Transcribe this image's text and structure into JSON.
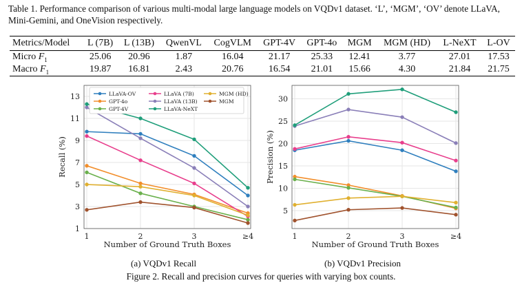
{
  "table_caption": "Table 1. Performance comparison of various multi-modal large language models on VQDv1 dataset. ‘L’, ‘MGM’, ‘OV’ denote LLaVA, Mini-Gemini, and OneVision respectively.",
  "table": {
    "headers": [
      "Metrics/Model",
      "L (7B)",
      "L (13B)",
      "QwenVL",
      "CogVLM",
      "GPT-4V",
      "GPT-4o",
      "MGM",
      "MGM (HD)",
      "L-NeXT",
      "L-OV"
    ],
    "rows": [
      {
        "metric": "Micro",
        "sub": "1",
        "values": [
          "25.06",
          "20.96",
          "1.87",
          "16.04",
          "21.17",
          "25.33",
          "12.41",
          "3.77",
          "27.01",
          "17.53"
        ]
      },
      {
        "metric": "Macro",
        "sub": "1",
        "values": [
          "19.87",
          "16.81",
          "2.43",
          "20.76",
          "16.54",
          "21.01",
          "15.66",
          "4.30",
          "21.84",
          "21.75"
        ]
      }
    ],
    "metric_symbol": "F"
  },
  "chart_data": [
    {
      "type": "line",
      "title": "",
      "xlabel": "Number of Ground Truth Boxes",
      "ylabel": "Recall (%)",
      "categories": [
        "1",
        "2",
        "3",
        "≥4"
      ],
      "ylim": [
        1,
        14
      ],
      "yticks": [
        1,
        3,
        5,
        7,
        9,
        11,
        13
      ],
      "legend": "top-right",
      "series": [
        {
          "name": "LLaVA-OV",
          "color": "#2f7fbe",
          "values": [
            9.8,
            9.6,
            7.6,
            4.0
          ]
        },
        {
          "name": "GPT-4o",
          "color": "#f28e2b",
          "values": [
            6.7,
            5.1,
            4.1,
            2.4
          ]
        },
        {
          "name": "GPT-4V",
          "color": "#6ab04c",
          "values": [
            6.1,
            4.2,
            3.0,
            1.8
          ]
        },
        {
          "name": "LLaVA (7B)",
          "color": "#e83e8c",
          "values": [
            9.4,
            7.2,
            5.1,
            2.1
          ]
        },
        {
          "name": "LLaVA (13B)",
          "color": "#8a7fb8",
          "values": [
            12.0,
            9.2,
            6.5,
            3.0
          ]
        },
        {
          "name": "LLaVA-NeXT",
          "color": "#1f9e7a",
          "values": [
            12.3,
            11.0,
            9.1,
            4.7
          ]
        },
        {
          "name": "MGM (HD)",
          "color": "#e0b030",
          "values": [
            5.0,
            4.8,
            4.0,
            2.2
          ]
        },
        {
          "name": "MGM",
          "color": "#a0522d",
          "values": [
            2.7,
            3.4,
            2.9,
            1.5
          ]
        }
      ],
      "subcaption": "(a) VQDv1 Recall"
    },
    {
      "type": "line",
      "title": "",
      "xlabel": "Number of Ground Truth Boxes",
      "ylabel": "Precision (%)",
      "categories": [
        "1",
        "2",
        "3",
        "≥4"
      ],
      "ylim": [
        1,
        33
      ],
      "yticks": [
        5,
        10,
        15,
        20,
        25,
        30
      ],
      "series": [
        {
          "name": "LLaVA-OV",
          "color": "#2f7fbe",
          "values": [
            18.5,
            20.6,
            18.5,
            13.8
          ]
        },
        {
          "name": "GPT-4o",
          "color": "#f28e2b",
          "values": [
            12.6,
            10.7,
            8.3,
            5.5
          ]
        },
        {
          "name": "GPT-4V",
          "color": "#6ab04c",
          "values": [
            12.0,
            10.1,
            8.2,
            5.7
          ]
        },
        {
          "name": "LLaVA (7B)",
          "color": "#e83e8c",
          "values": [
            18.8,
            21.5,
            20.2,
            16.2
          ]
        },
        {
          "name": "LLaVA (13B)",
          "color": "#8a7fb8",
          "values": [
            23.9,
            27.6,
            25.9,
            20.1
          ]
        },
        {
          "name": "LLaVA-NeXT",
          "color": "#1f9e7a",
          "values": [
            24.1,
            31.1,
            32.1,
            27.0
          ]
        },
        {
          "name": "MGM (HD)",
          "color": "#e0b030",
          "values": [
            6.3,
            7.8,
            8.2,
            6.8
          ]
        },
        {
          "name": "MGM",
          "color": "#a0522d",
          "values": [
            2.8,
            5.2,
            5.6,
            4.1
          ]
        }
      ],
      "subcaption": "(b) VQDv1 Precision"
    }
  ],
  "figure_caption": "Figure 2. Recall and precision curves for queries with varying box counts."
}
